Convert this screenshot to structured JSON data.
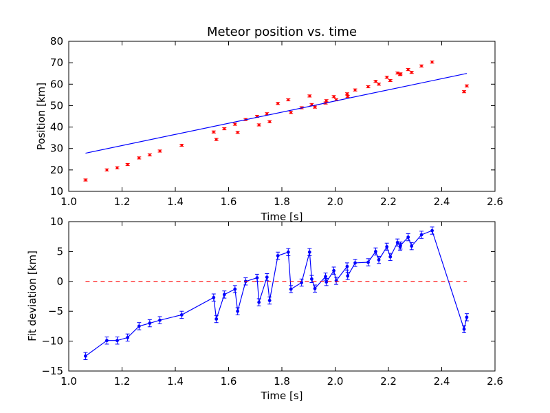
{
  "chart_data": [
    {
      "type": "scatter",
      "title": "Meteor position vs. time",
      "xlabel": "Time [s]",
      "ylabel": "Position [km]",
      "xlim": [
        1.0,
        2.6
      ],
      "ylim": [
        10,
        80
      ],
      "xticks": [
        "1.0",
        "1.2",
        "1.4",
        "1.6",
        "1.8",
        "2.0",
        "2.2",
        "2.4",
        "2.6"
      ],
      "yticks": [
        "10",
        "20",
        "30",
        "40",
        "50",
        "60",
        "70",
        "80"
      ],
      "grid": false,
      "series": [
        {
          "kind": "errorbar-points",
          "color": "#ff0000",
          "points": [
            [
              1.063,
              15.3
            ],
            [
              1.143,
              20.0
            ],
            [
              1.182,
              21.0
            ],
            [
              1.221,
              22.5
            ],
            [
              1.264,
              25.6
            ],
            [
              1.304,
              27.0
            ],
            [
              1.342,
              28.8
            ],
            [
              1.424,
              31.5
            ],
            [
              1.544,
              37.7
            ],
            [
              1.554,
              34.2
            ],
            [
              1.584,
              39.2
            ],
            [
              1.624,
              41.3
            ],
            [
              1.634,
              37.5
            ],
            [
              1.664,
              43.5
            ],
            [
              1.707,
              45.0
            ],
            [
              1.714,
              41.0
            ],
            [
              1.744,
              46.2
            ],
            [
              1.754,
              42.5
            ],
            [
              1.785,
              51.0
            ],
            [
              1.824,
              52.7
            ],
            [
              1.834,
              46.8
            ],
            [
              1.874,
              49.0
            ],
            [
              1.904,
              54.5
            ],
            [
              1.912,
              50.5
            ],
            [
              1.924,
              49.3
            ],
            [
              1.964,
              51.2
            ],
            [
              1.967,
              52.3
            ],
            [
              1.995,
              54.2
            ],
            [
              2.004,
              52.7
            ],
            [
              2.045,
              55.5
            ],
            [
              2.047,
              54.3
            ],
            [
              2.075,
              57.3
            ],
            [
              2.124,
              58.8
            ],
            [
              2.152,
              61.3
            ],
            [
              2.164,
              60.0
            ],
            [
              2.194,
              63.2
            ],
            [
              2.207,
              61.7
            ],
            [
              2.234,
              65.2
            ],
            [
              2.244,
              64.5
            ],
            [
              2.245,
              64.8
            ],
            [
              2.274,
              66.8
            ],
            [
              2.287,
              65.5
            ],
            [
              2.324,
              68.5
            ],
            [
              2.364,
              70.3
            ],
            [
              2.484,
              56.5
            ],
            [
              2.494,
              59.2
            ]
          ],
          "error": 0.5
        },
        {
          "kind": "line",
          "color": "#0000ff",
          "x": [
            1.063,
            2.494
          ],
          "y": [
            27.8,
            65.0
          ]
        }
      ]
    },
    {
      "type": "line",
      "title": "",
      "xlabel": "Time [s]",
      "ylabel": "Fit deviation [km]",
      "xlim": [
        1.0,
        2.6
      ],
      "ylim": [
        -15,
        10
      ],
      "xticks": [
        "1.0",
        "1.2",
        "1.4",
        "1.6",
        "1.8",
        "2.0",
        "2.2",
        "2.4",
        "2.6"
      ],
      "yticks": [
        "−15",
        "−10",
        "−5",
        "0",
        "5",
        "10"
      ],
      "grid": false,
      "series": [
        {
          "kind": "errorbar-line",
          "color": "#0000ff",
          "points": [
            [
              1.063,
              -12.5
            ],
            [
              1.143,
              -9.9
            ],
            [
              1.182,
              -9.9
            ],
            [
              1.221,
              -9.4
            ],
            [
              1.264,
              -7.5
            ],
            [
              1.304,
              -7.0
            ],
            [
              1.342,
              -6.5
            ],
            [
              1.424,
              -5.6
            ],
            [
              1.544,
              -2.7
            ],
            [
              1.554,
              -6.3
            ],
            [
              1.584,
              -2.2
            ],
            [
              1.624,
              -1.3
            ],
            [
              1.634,
              -5.0
            ],
            [
              1.664,
              0.0
            ],
            [
              1.707,
              0.6
            ],
            [
              1.714,
              -3.5
            ],
            [
              1.744,
              0.7
            ],
            [
              1.754,
              -3.2
            ],
            [
              1.785,
              4.3
            ],
            [
              1.824,
              4.9
            ],
            [
              1.834,
              -1.3
            ],
            [
              1.874,
              -0.2
            ],
            [
              1.904,
              4.9
            ],
            [
              1.912,
              0.4
            ],
            [
              1.924,
              -1.2
            ],
            [
              1.964,
              0.8
            ],
            [
              1.967,
              -0.1
            ],
            [
              1.995,
              1.8
            ],
            [
              2.004,
              0.1
            ],
            [
              2.045,
              2.5
            ],
            [
              2.047,
              0.9
            ],
            [
              2.075,
              3.1
            ],
            [
              2.124,
              3.2
            ],
            [
              2.152,
              5.0
            ],
            [
              2.164,
              3.6
            ],
            [
              2.194,
              5.8
            ],
            [
              2.207,
              4.1
            ],
            [
              2.234,
              6.5
            ],
            [
              2.244,
              5.8
            ],
            [
              2.245,
              6.0
            ],
            [
              2.274,
              7.4
            ],
            [
              2.287,
              5.9
            ],
            [
              2.324,
              7.8
            ],
            [
              2.364,
              8.5
            ],
            [
              2.484,
              -8.0
            ],
            [
              2.494,
              -6.0
            ]
          ],
          "error": 0.6
        },
        {
          "kind": "dashed-line",
          "color": "#ff0000",
          "x": [
            1.063,
            2.494
          ],
          "y": [
            0,
            0
          ]
        }
      ]
    }
  ]
}
